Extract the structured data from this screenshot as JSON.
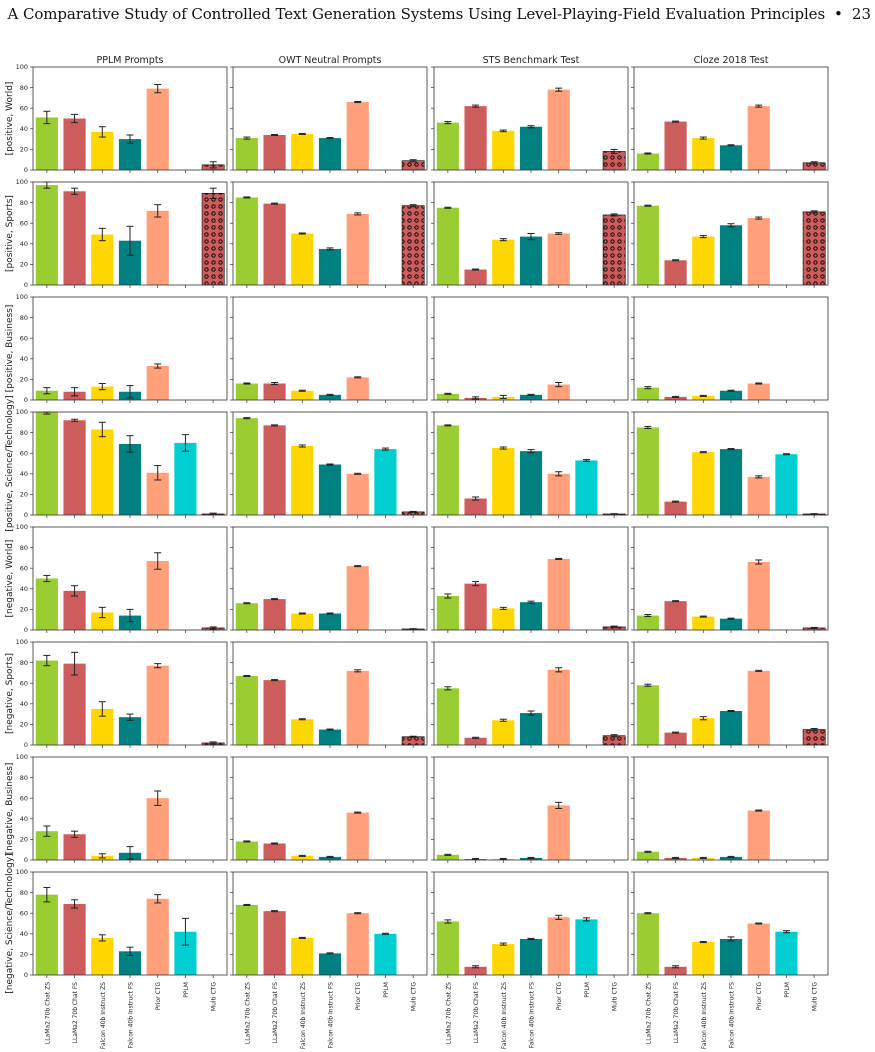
{
  "page": {
    "running_title": "A Comparative Study of Controlled Text Generation Systems Using Level-Playing-Field Evaluation Principles",
    "separator": "•",
    "page_number": "23"
  },
  "chart_data": {
    "type": "bar",
    "layout": "grid",
    "columns": [
      "PPLM Prompts",
      "OWT Neutral Prompts",
      "STS Benchmark Test",
      "Cloze 2018 Test"
    ],
    "row_labels": [
      "[positive, World]",
      "[positive, Sports]",
      "[positive, Business]",
      "[positive, Science/Technology]",
      "[negative, World]",
      "[negative, Sports]",
      "[negative, Business]",
      "[negative, Science/Technology]"
    ],
    "categories": [
      "LLaMa2 70b Chat ZS",
      "LLaMa2 70b Chat FS",
      "Falcon 40b Instruct ZS",
      "Falcon 40b Instruct FS",
      "Prior CTG",
      "PPLM",
      "Multi CTG"
    ],
    "bar_colors": [
      "#9ACD32",
      "#CD5C5C",
      "#FFD700",
      "#008080",
      "#FFA07A",
      "#00CED1",
      "#CD5C5C"
    ],
    "hatched_category": "Multi CTG",
    "ylim": [
      0,
      100
    ],
    "yticks": [
      0,
      20,
      40,
      60,
      80,
      100
    ],
    "grid": false,
    "panels": [
      [
        {
          "values": [
            51,
            50,
            37,
            30,
            79,
            0,
            5
          ],
          "errors": [
            6,
            4,
            5,
            4,
            4,
            0,
            3
          ]
        },
        {
          "values": [
            31,
            34,
            35,
            31,
            66,
            0,
            9
          ],
          "errors": [
            1,
            0.5,
            0.5,
            0.5,
            0.5,
            0,
            1
          ]
        },
        {
          "values": [
            46,
            62,
            38,
            42,
            78,
            0,
            18
          ],
          "errors": [
            1,
            1,
            0.8,
            1,
            1.5,
            0,
            2
          ]
        },
        {
          "values": [
            16,
            47,
            31,
            24,
            62,
            0,
            7
          ],
          "errors": [
            0.5,
            0.5,
            1,
            0.5,
            1,
            0,
            1
          ]
        }
      ],
      [
        {
          "values": [
            97,
            91,
            49,
            43,
            72,
            0,
            89
          ],
          "errors": [
            3,
            3,
            6,
            14,
            6,
            0,
            5
          ]
        },
        {
          "values": [
            85,
            79,
            50,
            35,
            69,
            0,
            77
          ],
          "errors": [
            0.5,
            0.5,
            0.5,
            1,
            1,
            0,
            1
          ]
        },
        {
          "values": [
            75,
            15,
            44,
            47,
            50,
            0,
            68
          ],
          "errors": [
            0.5,
            0.5,
            1,
            3,
            0.8,
            0,
            1
          ]
        },
        {
          "values": [
            77,
            24,
            47,
            58,
            65,
            0,
            71
          ],
          "errors": [
            0.5,
            0.5,
            1,
            1.5,
            1,
            0,
            1
          ]
        }
      ],
      [
        {
          "values": [
            9,
            8,
            13,
            8,
            33,
            0,
            0
          ],
          "errors": [
            3,
            4,
            3,
            6,
            2,
            0,
            0
          ]
        },
        {
          "values": [
            16,
            16,
            9,
            5,
            22,
            0,
            0
          ],
          "errors": [
            0.5,
            1,
            0.5,
            0.5,
            0.5,
            0,
            0
          ]
        },
        {
          "values": [
            6,
            2,
            3,
            5,
            15,
            0,
            0
          ],
          "errors": [
            0.5,
            1,
            1.5,
            0.5,
            2,
            0,
            0
          ]
        },
        {
          "values": [
            12,
            3,
            4,
            9,
            16,
            0,
            0
          ],
          "errors": [
            1,
            0.5,
            0.5,
            0.5,
            0.5,
            0,
            0
          ]
        }
      ],
      [
        {
          "values": [
            100,
            92,
            83,
            69,
            41,
            70,
            1
          ],
          "errors": [
            2,
            1,
            7,
            8,
            7,
            8,
            0.8
          ]
        },
        {
          "values": [
            94,
            87,
            67,
            49,
            40,
            64,
            3
          ],
          "errors": [
            0.5,
            0.5,
            1,
            0.5,
            0.5,
            1,
            0.5
          ]
        },
        {
          "values": [
            87,
            16,
            65,
            62,
            40,
            53,
            1
          ],
          "errors": [
            0.5,
            1.5,
            1,
            1.5,
            2,
            0.8,
            0.3
          ]
        },
        {
          "values": [
            85,
            13,
            61,
            64,
            37,
            59,
            1
          ],
          "errors": [
            1,
            0.5,
            0.5,
            0.5,
            1,
            0.5,
            0.3
          ]
        }
      ],
      [
        {
          "values": [
            50,
            38,
            17,
            14,
            67,
            0,
            2
          ],
          "errors": [
            3,
            5,
            5,
            6,
            8,
            0,
            1
          ]
        },
        {
          "values": [
            26,
            30,
            16,
            16,
            62,
            0,
            1
          ],
          "errors": [
            0.5,
            0.5,
            0.5,
            0.5,
            0.5,
            0,
            0.3
          ]
        },
        {
          "values": [
            33,
            45,
            21,
            27,
            69,
            0,
            3
          ],
          "errors": [
            2,
            2,
            1,
            1,
            0.5,
            0,
            0.8
          ]
        },
        {
          "values": [
            14,
            28,
            13,
            11,
            66,
            0,
            2
          ],
          "errors": [
            1,
            0.5,
            0.5,
            0.5,
            2,
            0,
            0.5
          ]
        }
      ],
      [
        {
          "values": [
            82,
            79,
            35,
            27,
            77,
            0,
            2
          ],
          "errors": [
            5,
            11,
            7,
            3,
            2,
            0,
            1
          ]
        },
        {
          "values": [
            67,
            63,
            25,
            15,
            72,
            0,
            8
          ],
          "errors": [
            0.5,
            0.5,
            0.5,
            0.5,
            1,
            0,
            0.5
          ]
        },
        {
          "values": [
            55,
            7,
            24,
            31,
            73,
            0,
            9
          ],
          "errors": [
            1.5,
            0.5,
            1,
            2,
            2,
            0,
            1
          ]
        },
        {
          "values": [
            58,
            12,
            26,
            33,
            72,
            0,
            15
          ],
          "errors": [
            1,
            0.5,
            1.5,
            0.5,
            0.5,
            0,
            1
          ]
        }
      ],
      [
        {
          "values": [
            28,
            25,
            4,
            7,
            60,
            0,
            0
          ],
          "errors": [
            5,
            3,
            2,
            6,
            7,
            0,
            0
          ]
        },
        {
          "values": [
            18,
            16,
            4,
            3,
            46,
            0,
            0
          ],
          "errors": [
            0.5,
            0.5,
            0.5,
            0.5,
            0.5,
            0,
            0
          ]
        },
        {
          "values": [
            5,
            1,
            1,
            2,
            53,
            0,
            0
          ],
          "errors": [
            0.5,
            0.5,
            0.5,
            0.5,
            3,
            0,
            0
          ]
        },
        {
          "values": [
            8,
            2,
            2,
            3,
            48,
            0,
            0
          ],
          "errors": [
            0.5,
            0.5,
            0.5,
            0.5,
            0.5,
            0,
            0
          ]
        }
      ],
      [
        {
          "values": [
            78,
            69,
            36,
            23,
            74,
            42,
            0
          ],
          "errors": [
            7,
            4,
            3,
            4,
            4,
            13,
            0
          ]
        },
        {
          "values": [
            68,
            62,
            36,
            21,
            60,
            40,
            0
          ],
          "errors": [
            0.5,
            0.5,
            0.5,
            0.5,
            0.5,
            0.5,
            0
          ]
        },
        {
          "values": [
            52,
            8,
            30,
            35,
            56,
            54,
            0
          ],
          "errors": [
            1.5,
            1,
            1,
            0.5,
            2,
            1.5,
            0
          ]
        },
        {
          "values": [
            60,
            8,
            32,
            35,
            50,
            42,
            0
          ],
          "errors": [
            0.5,
            1,
            0.5,
            2,
            0.5,
            1,
            0
          ]
        }
      ]
    ]
  }
}
